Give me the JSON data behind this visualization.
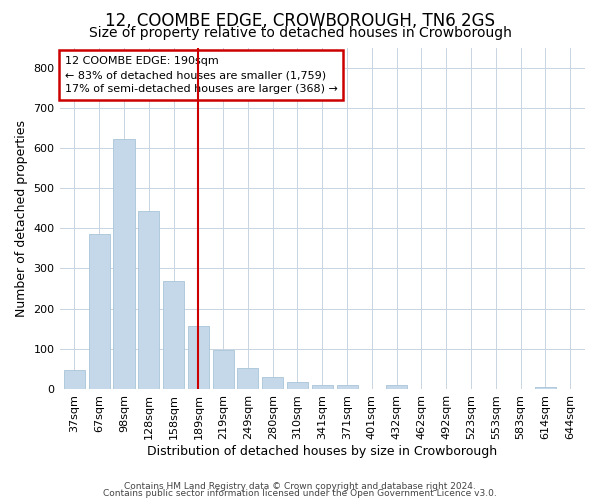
{
  "title": "12, COOMBE EDGE, CROWBOROUGH, TN6 2GS",
  "subtitle": "Size of property relative to detached houses in Crowborough",
  "xlabel": "Distribution of detached houses by size in Crowborough",
  "ylabel": "Number of detached properties",
  "categories": [
    "37sqm",
    "67sqm",
    "98sqm",
    "128sqm",
    "158sqm",
    "189sqm",
    "219sqm",
    "249sqm",
    "280sqm",
    "310sqm",
    "341sqm",
    "371sqm",
    "401sqm",
    "432sqm",
    "462sqm",
    "492sqm",
    "523sqm",
    "553sqm",
    "583sqm",
    "614sqm",
    "644sqm"
  ],
  "values": [
    48,
    385,
    623,
    443,
    268,
    157,
    97,
    51,
    31,
    17,
    10,
    10,
    0,
    10,
    0,
    0,
    0,
    0,
    0,
    5,
    0
  ],
  "highlight_index": 5,
  "bar_color": "#c5d8ea",
  "bar_edge_color": "#a8c4d8",
  "highlight_line_color": "#cc0000",
  "annotation_line1": "12 COOMBE EDGE: 190sqm",
  "annotation_line2": "← 83% of detached houses are smaller (1,759)",
  "annotation_line3": "17% of semi-detached houses are larger (368) →",
  "annotation_box_color": "#cc0000",
  "ylim": [
    0,
    850
  ],
  "yticks": [
    0,
    100,
    200,
    300,
    400,
    500,
    600,
    700,
    800
  ],
  "footer1": "Contains HM Land Registry data © Crown copyright and database right 2024.",
  "footer2": "Contains public sector information licensed under the Open Government Licence v3.0.",
  "bg_color": "#ffffff",
  "grid_color": "#c8d4e0",
  "title_fontsize": 12,
  "subtitle_fontsize": 10,
  "axis_label_fontsize": 9,
  "tick_fontsize": 8,
  "footer_fontsize": 6.5
}
